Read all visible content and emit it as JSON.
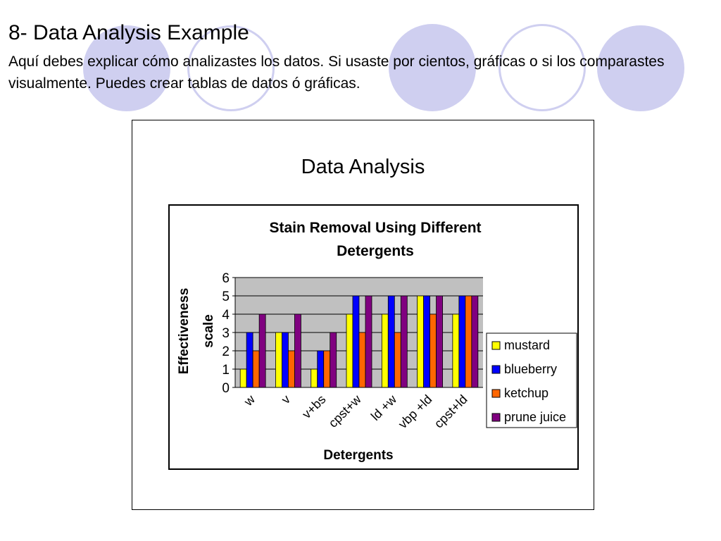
{
  "slide": {
    "title": "8- Data Analysis Example",
    "body": "Aquí debes explicar cómo analizastes los datos. Si usaste por cientos, gráficas o si los comparastes visualmente. Puedes crear tablas de datos ó gráficas.",
    "frame_title": "Data Analysis"
  },
  "colors": {
    "decoration": "#cfcff0",
    "plot_background": "#c0c0c0",
    "mustard": "#ffff00",
    "blueberry": "#0000ff",
    "ketchup": "#ff6600",
    "prune_juice": "#800080"
  },
  "chart_data": {
    "type": "bar",
    "title": "Stain Removal Using Different Detergents",
    "xlabel": "Detergents",
    "ylabel": "Effectiveness scale",
    "ylim": [
      0,
      6
    ],
    "yticks": [
      0,
      1,
      2,
      3,
      4,
      5,
      6
    ],
    "grid": true,
    "legend_position": "right",
    "categories": [
      "w",
      "v",
      "v+bs",
      "cpst+w",
      "ld +w",
      "vbp +ld",
      "cpst+ld"
    ],
    "series": [
      {
        "name": "mustard",
        "color": "#ffff00",
        "values": [
          1,
          3,
          1,
          4,
          4,
          5,
          4
        ]
      },
      {
        "name": "blueberry",
        "color": "#0000ff",
        "values": [
          3,
          3,
          2,
          5,
          5,
          5,
          5
        ]
      },
      {
        "name": "ketchup",
        "color": "#ff6600",
        "values": [
          2,
          2,
          2,
          3,
          3,
          4,
          5
        ]
      },
      {
        "name": "prune juice",
        "color": "#800080",
        "values": [
          4,
          4,
          3,
          5,
          5,
          5,
          5
        ]
      }
    ]
  }
}
